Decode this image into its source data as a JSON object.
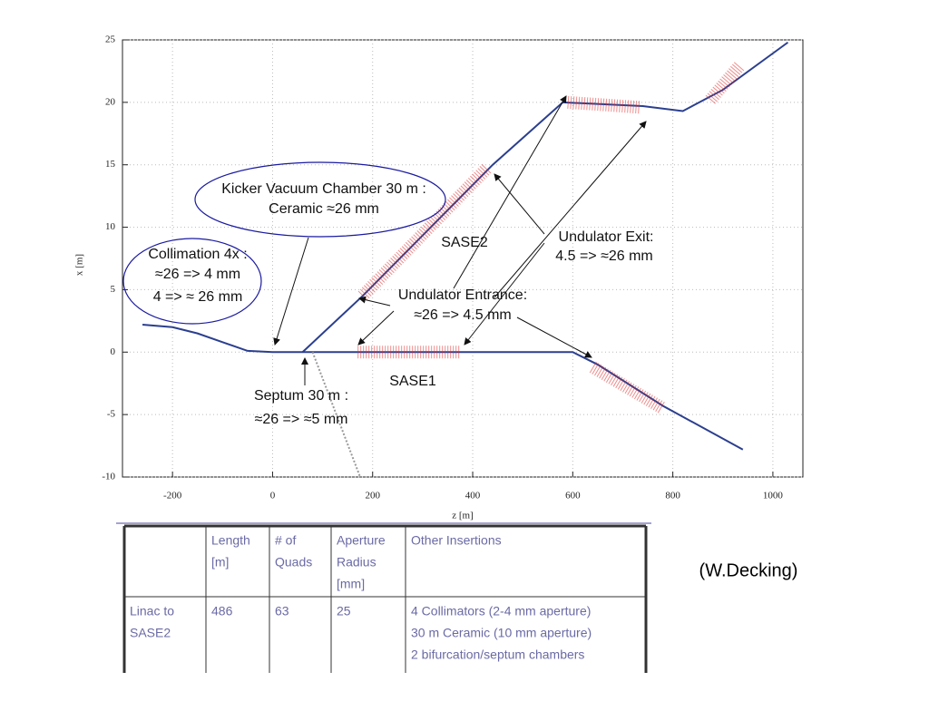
{
  "chart_data": {
    "type": "line",
    "xlabel": "z [m]",
    "ylabel": "x [m]",
    "xlim": [
      -300,
      1060
    ],
    "ylim": [
      -10,
      25
    ],
    "xticks": [
      -200,
      0,
      200,
      400,
      600,
      800,
      1000
    ],
    "yticks": [
      -10,
      -5,
      0,
      5,
      10,
      15,
      20,
      25
    ],
    "grid": true,
    "series": [
      {
        "color": "#2b3f8f",
        "x": [
          -260,
          -200,
          -150,
          -100,
          -50,
          0,
          50,
          100,
          200,
          400,
          600,
          650,
          780,
          940
        ],
        "values": [
          2.2,
          2.0,
          1.5,
          0.8,
          0.1,
          0,
          0,
          0,
          0,
          0,
          0,
          -1,
          -4.3,
          -7.8
        ]
      },
      {
        "color": "#2b3f8f",
        "x": [
          60,
          180,
          440,
          580,
          740,
          820,
          900,
          1030
        ],
        "values": [
          0,
          4.5,
          15,
          20,
          19.7,
          19.3,
          21,
          24.8
        ]
      },
      {
        "color": "#999999",
        "x": [
          80,
          175
        ],
        "values": [
          0,
          -10
        ]
      },
      {
        "color": "#e03030",
        "x": [
          170,
          375
        ],
        "values": [
          0,
          0
        ]
      },
      {
        "color": "#e03030",
        "x": [
          180,
          430
        ],
        "values": [
          4.5,
          14.8
        ]
      },
      {
        "color": "#e03030",
        "x": [
          590,
          735
        ],
        "values": [
          20,
          19.6
        ]
      },
      {
        "color": "#e03030",
        "x": [
          875,
          935
        ],
        "values": [
          20.2,
          23
        ]
      },
      {
        "color": "#e03030",
        "x": [
          640,
          780
        ],
        "values": [
          -1.2,
          -4.5
        ]
      }
    ]
  },
  "annotations": {
    "kicker": [
      "Kicker Vacuum Chamber 30 m :",
      "Ceramic ≈26 mm"
    ],
    "collimation": [
      "Collimation  4x :",
      "≈26 => 4 mm",
      "4 => ≈ 26 mm"
    ],
    "sase2": "SASE2",
    "sase1": "SASE1",
    "exit": [
      "Undulator Exit:",
      "4.5  => ≈26 mm"
    ],
    "entrance": [
      "Undulator Entrance:",
      "≈26 => 4.5 mm"
    ],
    "septum": [
      "Septum 30 m :",
      "≈26 => ≈5 mm"
    ]
  },
  "credit": "(W.Decking)",
  "table": {
    "header": [
      null,
      [
        "Length",
        "[m]"
      ],
      [
        "# of",
        "Quads"
      ],
      [
        "Aperture",
        "Radius",
        "[mm]"
      ],
      [
        "Other Insertions"
      ]
    ],
    "rows": [
      [
        [
          "Linac to",
          "SASE2"
        ],
        [
          486
        ],
        [
          63
        ],
        [
          25
        ],
        [
          "4 Collimators (2-4 mm aperture)",
          "30 m Ceramic (10 mm aperture)",
          "2 bifurcation/septum chambers"
        ]
      ]
    ]
  }
}
